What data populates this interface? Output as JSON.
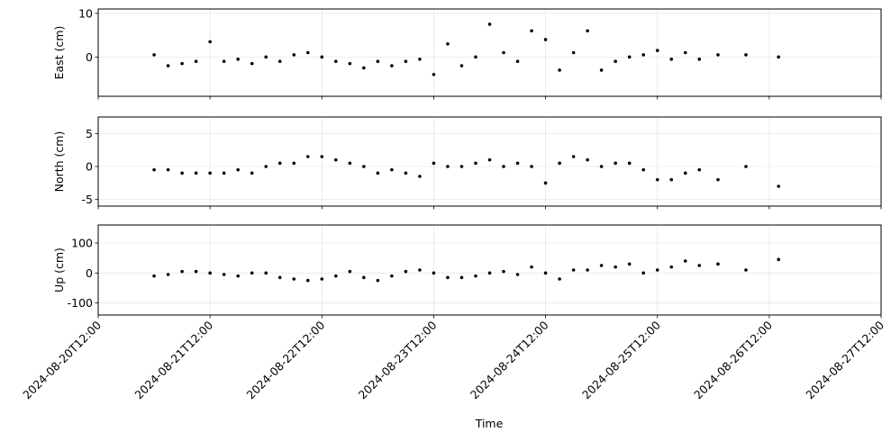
{
  "chart_data": {
    "type": "scatter",
    "xlabel": "Time",
    "x_start": "2024-08-20T12:00",
    "x_end": "2024-08-27T12:00",
    "x_ticks": [
      "2024-08-20T12:00",
      "2024-08-21T12:00",
      "2024-08-22T12:00",
      "2024-08-23T12:00",
      "2024-08-24T12:00",
      "2024-08-25T12:00",
      "2024-08-26T12:00",
      "2024-08-27T12:00"
    ],
    "grid": true,
    "legend": "none",
    "marker_color": "#000000",
    "panels": [
      {
        "ylabel": "East (cm)",
        "ylim": [
          -9,
          11
        ],
        "yticks": [
          0,
          10
        ],
        "series": [
          {
            "x": [
              "2024-08-21T00:00",
              "2024-08-21T03:00",
              "2024-08-21T06:00",
              "2024-08-21T09:00",
              "2024-08-21T12:00",
              "2024-08-21T15:00",
              "2024-08-21T18:00",
              "2024-08-21T21:00",
              "2024-08-22T00:00",
              "2024-08-22T03:00",
              "2024-08-22T06:00",
              "2024-08-22T09:00",
              "2024-08-22T12:00",
              "2024-08-22T15:00",
              "2024-08-22T18:00",
              "2024-08-22T21:00",
              "2024-08-23T00:00",
              "2024-08-23T03:00",
              "2024-08-23T06:00",
              "2024-08-23T09:00",
              "2024-08-23T12:00",
              "2024-08-23T15:00",
              "2024-08-23T18:00",
              "2024-08-23T21:00",
              "2024-08-24T00:00",
              "2024-08-24T03:00",
              "2024-08-24T06:00",
              "2024-08-24T09:00",
              "2024-08-24T12:00",
              "2024-08-24T15:00",
              "2024-08-24T18:00",
              "2024-08-24T21:00",
              "2024-08-25T00:00",
              "2024-08-25T03:00",
              "2024-08-25T06:00",
              "2024-08-25T09:00",
              "2024-08-25T12:00",
              "2024-08-25T15:00",
              "2024-08-25T18:00",
              "2024-08-25T21:00",
              "2024-08-26T01:00",
              "2024-08-26T07:00",
              "2024-08-26T14:00"
            ],
            "y": [
              0.5,
              -2,
              -1.5,
              -1,
              3.5,
              -1,
              -0.5,
              -1.5,
              0,
              -1,
              0.5,
              1,
              0,
              -1,
              -1.5,
              -2.5,
              -1,
              -2,
              -1,
              -0.5,
              -4,
              3,
              -2,
              0,
              7.5,
              1,
              -1,
              6,
              4,
              -3,
              1,
              6,
              -3,
              -1,
              0,
              0.5,
              1.5,
              -0.5,
              1,
              -0.5,
              0.5,
              0.5,
              0
            ]
          }
        ]
      },
      {
        "ylabel": "North (cm)",
        "ylim": [
          -6,
          7.5
        ],
        "yticks": [
          -5,
          0,
          5
        ],
        "series": [
          {
            "x": [
              "2024-08-21T00:00",
              "2024-08-21T03:00",
              "2024-08-21T06:00",
              "2024-08-21T09:00",
              "2024-08-21T12:00",
              "2024-08-21T15:00",
              "2024-08-21T18:00",
              "2024-08-21T21:00",
              "2024-08-22T00:00",
              "2024-08-22T03:00",
              "2024-08-22T06:00",
              "2024-08-22T09:00",
              "2024-08-22T12:00",
              "2024-08-22T15:00",
              "2024-08-22T18:00",
              "2024-08-22T21:00",
              "2024-08-23T00:00",
              "2024-08-23T03:00",
              "2024-08-23T06:00",
              "2024-08-23T09:00",
              "2024-08-23T12:00",
              "2024-08-23T15:00",
              "2024-08-23T18:00",
              "2024-08-23T21:00",
              "2024-08-24T00:00",
              "2024-08-24T03:00",
              "2024-08-24T06:00",
              "2024-08-24T09:00",
              "2024-08-24T12:00",
              "2024-08-24T15:00",
              "2024-08-24T18:00",
              "2024-08-24T21:00",
              "2024-08-25T00:00",
              "2024-08-25T03:00",
              "2024-08-25T06:00",
              "2024-08-25T09:00",
              "2024-08-25T12:00",
              "2024-08-25T15:00",
              "2024-08-25T18:00",
              "2024-08-25T21:00",
              "2024-08-26T01:00",
              "2024-08-26T07:00",
              "2024-08-26T14:00"
            ],
            "y": [
              -0.5,
              -0.5,
              -1,
              -1,
              -1,
              -1,
              -0.5,
              -1,
              0,
              0.5,
              0.5,
              1.5,
              1.5,
              1,
              0.5,
              0,
              -1,
              -0.5,
              -1,
              -1.5,
              0.5,
              0,
              0,
              0.5,
              1,
              0,
              0.5,
              0,
              -2.5,
              0.5,
              1.5,
              1,
              0,
              0.5,
              0.5,
              -0.5,
              -2,
              -2,
              -1,
              -0.5,
              -2,
              0,
              -3
            ]
          }
        ]
      },
      {
        "ylabel": "Up (cm)",
        "ylim": [
          -140,
          160
        ],
        "yticks": [
          -100,
          0,
          100
        ],
        "series": [
          {
            "x": [
              "2024-08-21T00:00",
              "2024-08-21T03:00",
              "2024-08-21T06:00",
              "2024-08-21T09:00",
              "2024-08-21T12:00",
              "2024-08-21T15:00",
              "2024-08-21T18:00",
              "2024-08-21T21:00",
              "2024-08-22T00:00",
              "2024-08-22T03:00",
              "2024-08-22T06:00",
              "2024-08-22T09:00",
              "2024-08-22T12:00",
              "2024-08-22T15:00",
              "2024-08-22T18:00",
              "2024-08-22T21:00",
              "2024-08-23T00:00",
              "2024-08-23T03:00",
              "2024-08-23T06:00",
              "2024-08-23T09:00",
              "2024-08-23T12:00",
              "2024-08-23T15:00",
              "2024-08-23T18:00",
              "2024-08-23T21:00",
              "2024-08-24T00:00",
              "2024-08-24T03:00",
              "2024-08-24T06:00",
              "2024-08-24T09:00",
              "2024-08-24T12:00",
              "2024-08-24T15:00",
              "2024-08-24T18:00",
              "2024-08-24T21:00",
              "2024-08-25T00:00",
              "2024-08-25T03:00",
              "2024-08-25T06:00",
              "2024-08-25T09:00",
              "2024-08-25T12:00",
              "2024-08-25T15:00",
              "2024-08-25T18:00",
              "2024-08-25T21:00",
              "2024-08-26T01:00",
              "2024-08-26T07:00",
              "2024-08-26T14:00"
            ],
            "y": [
              -10,
              -5,
              5,
              5,
              0,
              -5,
              -10,
              0,
              0,
              -15,
              -20,
              -25,
              -20,
              -10,
              5,
              -15,
              -25,
              -10,
              5,
              10,
              0,
              -15,
              -15,
              -10,
              0,
              5,
              -5,
              20,
              0,
              -20,
              10,
              10,
              25,
              20,
              30,
              0,
              10,
              20,
              40,
              25,
              30,
              10,
              45
            ]
          }
        ]
      }
    ]
  }
}
